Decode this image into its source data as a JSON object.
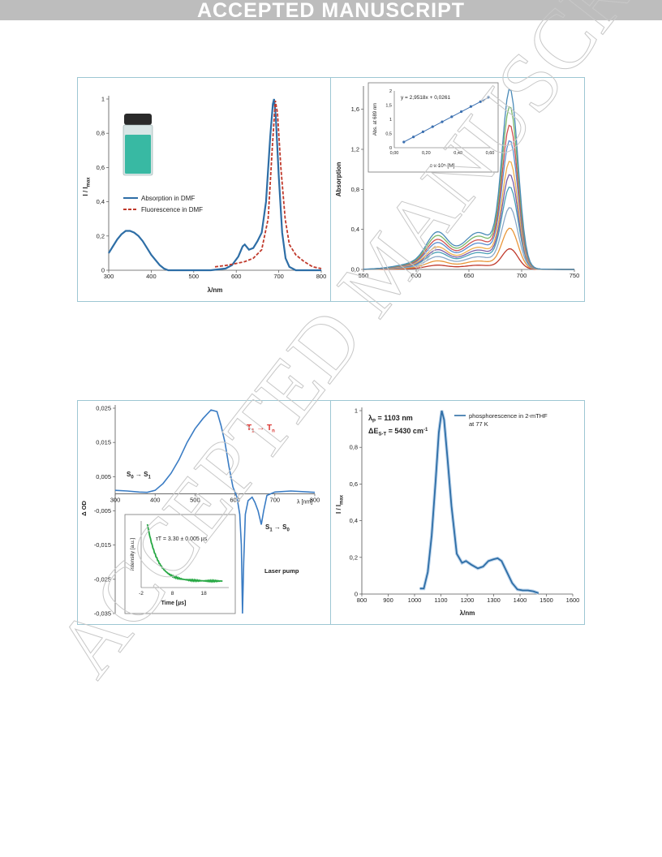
{
  "banner": "ACCEPTED MANUSCRIPT",
  "watermark": "ACCEPTED MANUSCRIPT",
  "chart_data": [
    {
      "id": "p1",
      "type": "line",
      "xlabel": "λ/nm",
      "ylabel": "I / Imax",
      "xlim": [
        300,
        800
      ],
      "ylim": [
        0,
        1.0
      ],
      "xticks": [
        300,
        400,
        500,
        600,
        700,
        800
      ],
      "yticks": [
        0,
        0.2,
        0.4,
        0.6,
        0.8,
        1
      ],
      "ytick_labels": [
        "0",
        "0,2",
        "0,4",
        "0,6",
        "0,8",
        "1"
      ],
      "legend_position": "center-left",
      "series": [
        {
          "name": "Absorption in DMF",
          "color": "#2e6ea6",
          "style": "solid",
          "points": [
            [
              300,
              0.1
            ],
            [
              310,
              0.14
            ],
            [
              320,
              0.18
            ],
            [
              330,
              0.21
            ],
            [
              340,
              0.23
            ],
            [
              350,
              0.23
            ],
            [
              360,
              0.22
            ],
            [
              370,
              0.2
            ],
            [
              380,
              0.17
            ],
            [
              390,
              0.13
            ],
            [
              400,
              0.09
            ],
            [
              410,
              0.06
            ],
            [
              420,
              0.03
            ],
            [
              430,
              0.01
            ],
            [
              440,
              0.0
            ],
            [
              470,
              0.0
            ],
            [
              540,
              0.0
            ],
            [
              575,
              0.01
            ],
            [
              590,
              0.03
            ],
            [
              605,
              0.08
            ],
            [
              615,
              0.14
            ],
            [
              620,
              0.15
            ],
            [
              630,
              0.12
            ],
            [
              640,
              0.13
            ],
            [
              650,
              0.17
            ],
            [
              660,
              0.22
            ],
            [
              670,
              0.4
            ],
            [
              680,
              0.78
            ],
            [
              686,
              0.97
            ],
            [
              689,
              1.0
            ],
            [
              693,
              0.9
            ],
            [
              700,
              0.55
            ],
            [
              708,
              0.22
            ],
            [
              716,
              0.07
            ],
            [
              725,
              0.02
            ],
            [
              740,
              0.0
            ],
            [
              800,
              0.0
            ]
          ]
        },
        {
          "name": "Fluorescence in DMF",
          "color": "#c0392b",
          "style": "dashed",
          "points": [
            [
              550,
              0.02
            ],
            [
              580,
              0.03
            ],
            [
              600,
              0.04
            ],
            [
              620,
              0.05
            ],
            [
              640,
              0.07
            ],
            [
              660,
              0.12
            ],
            [
              675,
              0.3
            ],
            [
              685,
              0.72
            ],
            [
              692,
              0.99
            ],
            [
              697,
              0.92
            ],
            [
              705,
              0.6
            ],
            [
              715,
              0.3
            ],
            [
              725,
              0.15
            ],
            [
              740,
              0.09
            ],
            [
              760,
              0.05
            ],
            [
              780,
              0.02
            ],
            [
              800,
              0.01
            ]
          ]
        }
      ]
    },
    {
      "id": "p2",
      "type": "line",
      "xlabel": "",
      "ylabel": "Absorption",
      "xlim": [
        550,
        750
      ],
      "ylim": [
        0,
        1.8
      ],
      "xticks": [
        550,
        600,
        650,
        700,
        750
      ],
      "yticks": [
        0,
        0.4,
        0.8,
        1.2,
        1.6
      ],
      "ytick_labels": [
        "0,0",
        "0,4",
        "0,8",
        "1,2",
        "1,6"
      ],
      "series_peaks": [
        0.2,
        0.4,
        0.6,
        0.8,
        0.92,
        1.05,
        1.25,
        1.4,
        1.58,
        1.75
      ],
      "colors": [
        "#c0392b",
        "#e8963a",
        "#8aa8c8",
        "#4aa0b8",
        "#7b5ea7",
        "#f0b050",
        "#5b8ed0",
        "#d05050",
        "#7ab86a",
        "#4a8ab8"
      ],
      "inset": {
        "type": "scatter",
        "equation": "y = 2,9518x + 0,0261",
        "xlabel": "c x 10⁵ [M]",
        "ylabel": "Abs. at 689 nm",
        "xlim": [
          0,
          0.6
        ],
        "ylim": [
          0,
          2
        ],
        "xticks": [
          0,
          0.2,
          0.4,
          0.6
        ],
        "xtick_labels": [
          "0,00",
          "0,20",
          "0,40",
          "0,60"
        ],
        "yticks": [
          0,
          0.5,
          1,
          1.5,
          2
        ],
        "ytick_labels": [
          "0",
          "0,5",
          "1",
          "1,5",
          "2"
        ],
        "x": [
          0.06,
          0.12,
          0.18,
          0.24,
          0.3,
          0.36,
          0.42,
          0.48,
          0.54,
          0.59
        ],
        "y": [
          0.2,
          0.38,
          0.56,
          0.74,
          0.91,
          1.09,
          1.27,
          1.45,
          1.62,
          1.78
        ]
      }
    },
    {
      "id": "p3",
      "type": "line",
      "xlabel": "λ [nm]",
      "ylabel": "Δ OD",
      "xlim": [
        300,
        800
      ],
      "ylim": [
        -0.035,
        0.025
      ],
      "xticks": [
        300,
        400,
        500,
        600,
        700,
        800
      ],
      "yticks": [
        -0.035,
        -0.025,
        -0.015,
        -0.005,
        0.005,
        0.015,
        0.025
      ],
      "ytick_labels": [
        "-0,035",
        "-0,025",
        "-0,015",
        "-0,005",
        "0,005",
        "0,015",
        "0,025"
      ],
      "annotations": {
        "t1tn": "T₁ → Tₙ",
        "s0s1": "S₀ → S₁",
        "s1s0": "S₁ → S₀",
        "laser": "Laser pump"
      },
      "series": [
        {
          "color": "#3a7cc4",
          "points": [
            [
              300,
              0.001
            ],
            [
              330,
              0.0008
            ],
            [
              360,
              0.0005
            ],
            [
              380,
              0.0004
            ],
            [
              400,
              0.001
            ],
            [
              420,
              0.003
            ],
            [
              440,
              0.006
            ],
            [
              460,
              0.01
            ],
            [
              480,
              0.015
            ],
            [
              500,
              0.019
            ],
            [
              520,
              0.022
            ],
            [
              540,
              0.0245
            ],
            [
              555,
              0.024
            ],
            [
              565,
              0.02
            ],
            [
              575,
              0.015
            ],
            [
              585,
              0.008
            ],
            [
              595,
              0.002
            ],
            [
              605,
              -0.001
            ],
            [
              612,
              -0.006
            ],
            [
              616,
              -0.015
            ],
            [
              619,
              -0.035
            ],
            [
              622,
              -0.02
            ],
            [
              626,
              -0.006
            ],
            [
              633,
              -0.002
            ],
            [
              643,
              -0.001
            ],
            [
              650,
              -0.0025
            ],
            [
              658,
              -0.005
            ],
            [
              666,
              -0.009
            ],
            [
              672,
              -0.005
            ],
            [
              680,
              -0.0005
            ],
            [
              700,
              0.0005
            ],
            [
              740,
              0.0008
            ],
            [
              800,
              0.0004
            ]
          ]
        }
      ],
      "inset": {
        "type": "line",
        "label": "τT = 3.30 ± 0.005 µs",
        "xlabel": "Time [µs]",
        "ylabel": "Intensity [a.u.]",
        "xlim": [
          -2,
          26
        ],
        "xticks": [
          -2,
          8,
          18
        ],
        "xtick_labels": [
          "-2",
          "8",
          "18"
        ],
        "tau": 3.3
      }
    },
    {
      "id": "p4",
      "type": "line",
      "xlabel": "λ/nm",
      "ylabel": "I / Imax",
      "xlim": [
        800,
        1600
      ],
      "ylim": [
        0,
        1
      ],
      "xticks": [
        800,
        900,
        1000,
        1100,
        1200,
        1300,
        1400,
        1500,
        1600
      ],
      "yticks": [
        0,
        0.2,
        0.4,
        0.6,
        0.8,
        1
      ],
      "ytick_labels": [
        "0",
        "0,2",
        "0,4",
        "0,6",
        "0,8",
        "1"
      ],
      "annotation_lines": [
        "λP = 1103 nm",
        "ΔES-T = 5430 cm-1"
      ],
      "series": [
        {
          "name": "phosphorescence in 2-mTHF at 77 K",
          "color": "#2e6ea6",
          "points": [
            [
              1020,
              0.03
            ],
            [
              1035,
              0.03
            ],
            [
              1050,
              0.12
            ],
            [
              1065,
              0.32
            ],
            [
              1080,
              0.62
            ],
            [
              1092,
              0.88
            ],
            [
              1103,
              1.0
            ],
            [
              1112,
              0.95
            ],
            [
              1125,
              0.74
            ],
            [
              1140,
              0.48
            ],
            [
              1160,
              0.22
            ],
            [
              1180,
              0.17
            ],
            [
              1195,
              0.18
            ],
            [
              1215,
              0.16
            ],
            [
              1240,
              0.14
            ],
            [
              1260,
              0.15
            ],
            [
              1280,
              0.18
            ],
            [
              1300,
              0.19
            ],
            [
              1315,
              0.195
            ],
            [
              1330,
              0.18
            ],
            [
              1350,
              0.12
            ],
            [
              1370,
              0.06
            ],
            [
              1390,
              0.025
            ],
            [
              1410,
              0.02
            ],
            [
              1430,
              0.02
            ],
            [
              1450,
              0.015
            ],
            [
              1470,
              0.005
            ]
          ]
        }
      ]
    }
  ]
}
